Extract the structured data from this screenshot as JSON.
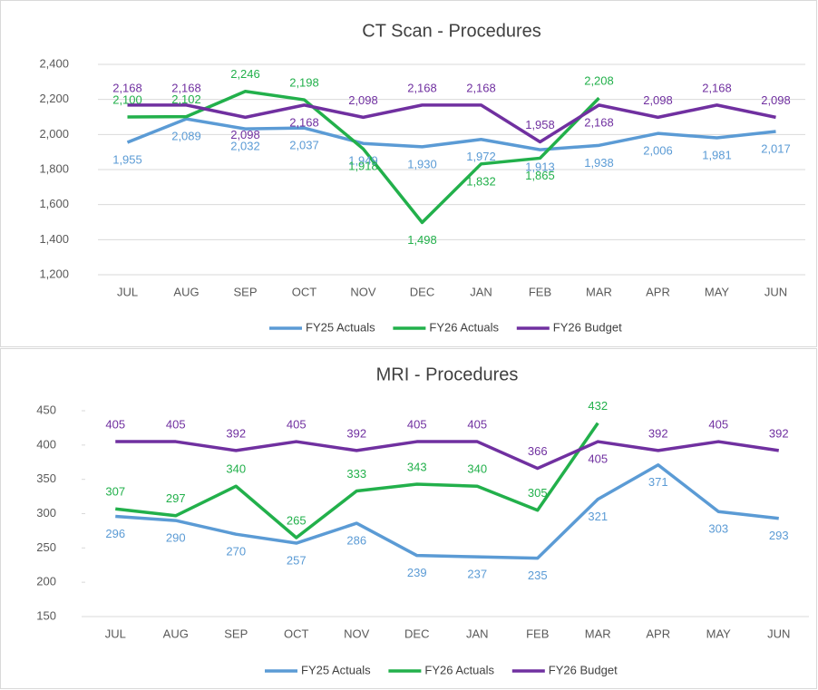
{
  "chart_data": [
    {
      "type": "line",
      "title": "CT Scan - Procedures",
      "categories": [
        "JUL",
        "AUG",
        "SEP",
        "OCT",
        "NOV",
        "DEC",
        "JAN",
        "FEB",
        "MAR",
        "APR",
        "MAY",
        "JUN"
      ],
      "ylim": [
        1200,
        2400
      ],
      "yticks": [
        {
          "value": 1200,
          "label": "1,200"
        },
        {
          "value": 1400,
          "label": "1,400"
        },
        {
          "value": 1600,
          "label": "1,600"
        },
        {
          "value": 1800,
          "label": "1,800"
        },
        {
          "value": 2000,
          "label": "2,000"
        },
        {
          "value": 2200,
          "label": "2,200"
        },
        {
          "value": 2400,
          "label": "2,400"
        }
      ],
      "grid": true,
      "legend": "bottom",
      "series": [
        {
          "name": "FY25 Actuals",
          "color": "#5b9bd5",
          "values": [
            1955,
            2089,
            2032,
            2037,
            1949,
            1930,
            1972,
            1913,
            1938,
            2006,
            1981,
            2017
          ],
          "value_labels": [
            "1,955",
            "2,089",
            "2,032",
            "2,037",
            "1,949",
            "1,930",
            "1,972",
            "1,913",
            "1,938",
            "2,006",
            "1,981",
            "2,017"
          ]
        },
        {
          "name": "FY26 Actuals",
          "color": "#22b04b",
          "values": [
            2100,
            2102,
            2246,
            2198,
            1918,
            1498,
            1832,
            1865,
            2208,
            null,
            null,
            null
          ],
          "value_labels": [
            "2,100",
            "2,102",
            "2,246",
            "2,198",
            "1,918",
            "1,498",
            "1,832",
            "1,865",
            "2,208",
            null,
            null,
            null
          ]
        },
        {
          "name": "FY26 Budget",
          "color": "#7030a0",
          "values": [
            2168,
            2168,
            2098,
            2168,
            2098,
            2168,
            2168,
            1958,
            2168,
            2098,
            2168,
            2098
          ],
          "value_labels": [
            "2,168",
            "2,168",
            "2,098",
            "2,168",
            "2,098",
            "2,168",
            "2,168",
            "1,958",
            "2,168",
            "2,098",
            "2,168",
            "2,098"
          ]
        }
      ]
    },
    {
      "type": "line",
      "title": "MRI - Procedures",
      "categories": [
        "JUL",
        "AUG",
        "SEP",
        "OCT",
        "NOV",
        "DEC",
        "JAN",
        "FEB",
        "MAR",
        "APR",
        "MAY",
        "JUN"
      ],
      "ylim": [
        150,
        450
      ],
      "yticks": [
        150,
        200,
        250,
        300,
        350,
        400,
        450
      ],
      "grid": false,
      "legend": "bottom",
      "series": [
        {
          "name": "FY25 Actuals",
          "color": "#5b9bd5",
          "values": [
            296,
            290,
            270,
            257,
            286,
            239,
            237,
            235,
            321,
            371,
            303,
            293
          ]
        },
        {
          "name": "FY26 Actuals",
          "color": "#22b04b",
          "values": [
            307,
            297,
            340,
            265,
            333,
            343,
            340,
            305,
            432,
            null,
            null,
            null
          ]
        },
        {
          "name": "FY26 Budget",
          "color": "#7030a0",
          "values": [
            405,
            405,
            392,
            405,
            392,
            405,
            405,
            366,
            405,
            392,
            405,
            392
          ]
        }
      ]
    }
  ]
}
